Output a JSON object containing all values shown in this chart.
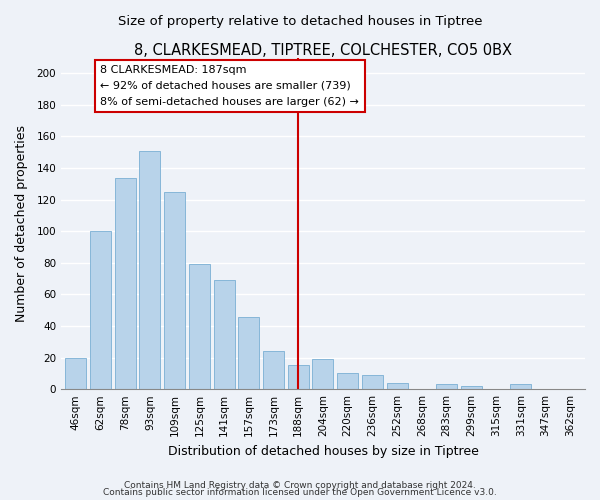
{
  "title": "8, CLARKESMEAD, TIPTREE, COLCHESTER, CO5 0BX",
  "subtitle": "Size of property relative to detached houses in Tiptree",
  "xlabel": "Distribution of detached houses by size in Tiptree",
  "ylabel": "Number of detached properties",
  "bar_labels": [
    "46sqm",
    "62sqm",
    "78sqm",
    "93sqm",
    "109sqm",
    "125sqm",
    "141sqm",
    "157sqm",
    "173sqm",
    "188sqm",
    "204sqm",
    "220sqm",
    "236sqm",
    "252sqm",
    "268sqm",
    "283sqm",
    "299sqm",
    "315sqm",
    "331sqm",
    "347sqm",
    "362sqm"
  ],
  "bar_values": [
    20,
    100,
    134,
    151,
    125,
    79,
    69,
    46,
    24,
    15,
    19,
    10,
    9,
    4,
    0,
    3,
    2,
    0,
    3,
    0,
    0
  ],
  "bar_color": "#b8d3ea",
  "bar_edgecolor": "#7aafd4",
  "vline_index": 9,
  "vline_color": "#cc0000",
  "annotation_title": "8 CLARKESMEAD: 187sqm",
  "annotation_line1": "← 92% of detached houses are smaller (739)",
  "annotation_line2": "8% of semi-detached houses are larger (62) →",
  "annotation_box_facecolor": "#ffffff",
  "annotation_box_edgecolor": "#cc0000",
  "ylim": [
    0,
    210
  ],
  "yticks": [
    0,
    20,
    40,
    60,
    80,
    100,
    120,
    140,
    160,
    180,
    200
  ],
  "footer1": "Contains HM Land Registry data © Crown copyright and database right 2024.",
  "footer2": "Contains public sector information licensed under the Open Government Licence v3.0.",
  "bg_color": "#eef2f8",
  "plot_bg_color": "#eef2f8",
  "grid_color": "#ffffff",
  "title_fontsize": 10.5,
  "subtitle_fontsize": 9.5,
  "axis_label_fontsize": 9,
  "tick_fontsize": 7.5,
  "footer_fontsize": 6.5
}
